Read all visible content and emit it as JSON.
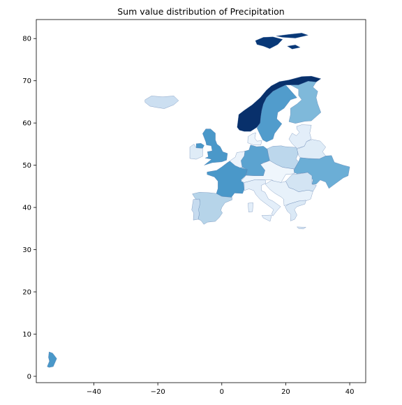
{
  "title": "Sum value distribution of Precipitation",
  "colormap": {
    "name": "Blues",
    "stops": [
      "#f7fbff",
      "#deebf7",
      "#c6dbef",
      "#9ecae1",
      "#6baed6",
      "#4292c6",
      "#2171b5",
      "#08519c",
      "#08306b"
    ]
  },
  "axes": {
    "x_ticks": [
      -40,
      -20,
      0,
      20,
      40
    ],
    "y_ticks": [
      0,
      10,
      20,
      30,
      40,
      50,
      60,
      70,
      80
    ],
    "x_range": [
      -58,
      45
    ],
    "y_range": [
      -1.5,
      84.5
    ]
  },
  "regions": [
    {
      "name": "Svalbard",
      "level": 0.97
    },
    {
      "name": "Norway",
      "level": 1.0
    },
    {
      "name": "Sweden",
      "level": 0.58
    },
    {
      "name": "Finland",
      "level": 0.45
    },
    {
      "name": "Iceland",
      "level": 0.22
    },
    {
      "name": "United Kingdom",
      "level": 0.6
    },
    {
      "name": "Ireland",
      "level": 0.12
    },
    {
      "name": "France",
      "level": 0.6
    },
    {
      "name": "Spain",
      "level": 0.3
    },
    {
      "name": "Portugal",
      "level": 0.25
    },
    {
      "name": "Germany",
      "level": 0.55
    },
    {
      "name": "Poland",
      "level": 0.28
    },
    {
      "name": "Ukraine",
      "level": 0.5
    },
    {
      "name": "Belarus",
      "level": 0.12
    },
    {
      "name": "Baltics",
      "level": 0.1
    },
    {
      "name": "Italy",
      "level": 0.1
    },
    {
      "name": "Central Europe",
      "level": 0.04
    },
    {
      "name": "Romania",
      "level": 0.18
    },
    {
      "name": "Balkans",
      "level": 0.08
    },
    {
      "name": "Greece",
      "level": 0.14
    },
    {
      "name": "Denmark",
      "level": 0.05
    },
    {
      "name": "Benelux",
      "level": 0.06
    },
    {
      "name": "French Guiana",
      "level": 0.6
    }
  ]
}
